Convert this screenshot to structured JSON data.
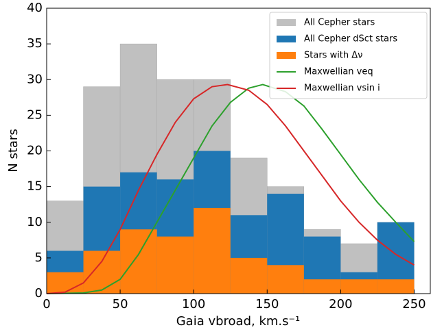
{
  "chart_data": {
    "type": "histogram",
    "xlabel": "Gaia vbroad, km.s⁻¹",
    "ylabel": "N stars",
    "bins": [
      0,
      25,
      50,
      75,
      100,
      125,
      150,
      175,
      200,
      225,
      250
    ],
    "xlim": [
      0,
      261
    ],
    "ylim": [
      0,
      40
    ],
    "xticks": [
      0,
      50,
      100,
      150,
      200,
      250
    ],
    "yticks": [
      0,
      5,
      10,
      15,
      20,
      25,
      30,
      35,
      40
    ],
    "legend": "upper right",
    "series": [
      {
        "type": "histogram",
        "name": "All Cepher stars",
        "color": "#c0c0c0",
        "values": [
          13,
          29,
          35,
          30,
          30,
          19,
          15,
          9,
          7,
          10
        ]
      },
      {
        "type": "histogram",
        "name": "All Cepher dSct stars",
        "color": "#1f77b4",
        "values": [
          6,
          15,
          17,
          16,
          20,
          11,
          14,
          8,
          3,
          10
        ]
      },
      {
        "type": "histogram",
        "name": "Stars with Δν",
        "color": "#ff7f0e",
        "values": [
          3,
          6,
          9,
          8,
          12,
          5,
          4,
          2,
          2,
          2
        ]
      },
      {
        "type": "line",
        "name": "Maxwellian veq",
        "color": "#2ca02c",
        "x": [
          0,
          25,
          37.5,
          50,
          62.5,
          75,
          87.5,
          100,
          112.5,
          125,
          137.5,
          147,
          162.5,
          175,
          187.5,
          200,
          212.5,
          225,
          237.5,
          250
        ],
        "values": [
          0,
          0.1,
          0.5,
          2,
          5.5,
          10,
          14.5,
          19,
          23.5,
          26.8,
          28.8,
          29.3,
          28.3,
          26.3,
          23,
          19.5,
          16,
          12.8,
          10,
          7.3
        ]
      },
      {
        "type": "line",
        "name": "Maxwellian vsin i",
        "color": "#d62728",
        "x": [
          0,
          12.5,
          25,
          37.5,
          50,
          62.5,
          75,
          87.5,
          100,
          112.5,
          123,
          137.5,
          150,
          162.5,
          175,
          187.5,
          200,
          212.5,
          225,
          237.5,
          250
        ],
        "values": [
          0,
          0.2,
          1.5,
          4.5,
          9,
          14.5,
          19.5,
          24,
          27.3,
          29,
          29.3,
          28.5,
          26.5,
          23.5,
          20,
          16.5,
          13,
          10,
          7.5,
          5.5,
          4
        ]
      }
    ]
  }
}
